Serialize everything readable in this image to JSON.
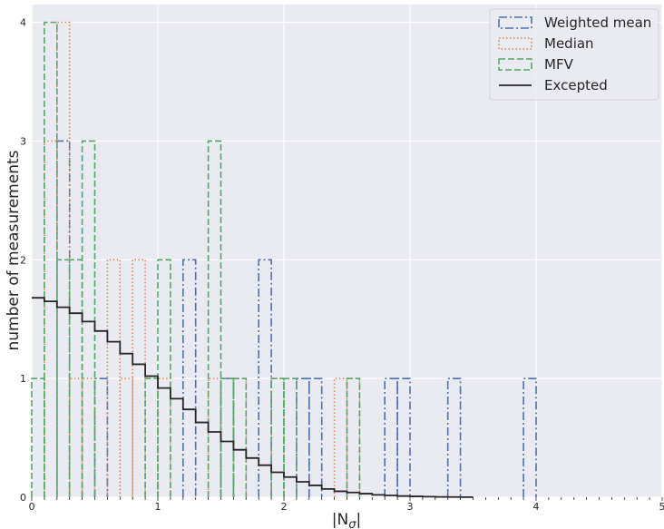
{
  "chart_data": {
    "type": "histogram",
    "xlabel_base": "|N",
    "xlabel_sub": "σ",
    "xlabel_end": "|",
    "ylabel": "number of measurements",
    "xlim": [
      0,
      5
    ],
    "ylim": [
      0,
      4.15
    ],
    "xticks": [
      "0",
      "1",
      "2",
      "3",
      "4",
      "5"
    ],
    "yticks": [
      "0",
      "1",
      "2",
      "3",
      "4"
    ],
    "grid": true,
    "legend_position": "top-right",
    "bin_width": 0.1,
    "series": [
      {
        "name": "Weighted mean",
        "style": "dashdot",
        "color": "#4c72b0",
        "bins": [
          [
            0.2,
            3
          ],
          [
            0.5,
            1
          ],
          [
            1.2,
            2
          ],
          [
            1.5,
            1
          ],
          [
            1.8,
            2
          ],
          [
            2.1,
            1
          ],
          [
            2.2,
            1
          ],
          [
            2.8,
            1
          ],
          [
            2.9,
            1
          ],
          [
            3.3,
            1
          ],
          [
            3.9,
            1
          ]
        ]
      },
      {
        "name": "Median",
        "style": "dotted",
        "color": "#dd8452",
        "bins": [
          [
            0.1,
            3
          ],
          [
            0.2,
            4
          ],
          [
            0.3,
            1
          ],
          [
            0.4,
            1
          ],
          [
            0.6,
            2
          ],
          [
            0.7,
            1
          ],
          [
            0.8,
            2
          ],
          [
            1.0,
            1
          ],
          [
            1.4,
            1
          ],
          [
            1.6,
            1
          ],
          [
            1.9,
            1
          ],
          [
            2.4,
            1
          ],
          [
            2.5,
            1
          ]
        ]
      },
      {
        "name": "MFV",
        "style": "dashed",
        "color": "#55a868",
        "bins": [
          [
            0.0,
            1
          ],
          [
            0.1,
            4
          ],
          [
            0.2,
            2
          ],
          [
            0.3,
            2
          ],
          [
            0.4,
            3
          ],
          [
            0.9,
            1
          ],
          [
            1.0,
            2
          ],
          [
            1.4,
            3
          ],
          [
            1.5,
            1
          ],
          [
            1.6,
            1
          ],
          [
            1.9,
            1
          ],
          [
            2.0,
            1
          ],
          [
            2.5,
            1
          ]
        ]
      },
      {
        "name": "Excepted",
        "style": "solid",
        "color": "#262626",
        "step_x": [
          0.0,
          0.1,
          0.2,
          0.3,
          0.4,
          0.5,
          0.6,
          0.7,
          0.8,
          0.9,
          1.0,
          1.1,
          1.2,
          1.3,
          1.4,
          1.5,
          1.6,
          1.7,
          1.8,
          1.9,
          2.0,
          2.1,
          2.2,
          2.3,
          2.4,
          2.5,
          2.6,
          2.7,
          2.8,
          2.9,
          3.0,
          3.1,
          3.2,
          3.3,
          3.4
        ],
        "step_y": [
          1.68,
          1.65,
          1.6,
          1.55,
          1.48,
          1.4,
          1.31,
          1.21,
          1.12,
          1.02,
          0.92,
          0.83,
          0.74,
          0.63,
          0.55,
          0.47,
          0.4,
          0.33,
          0.27,
          0.21,
          0.17,
          0.13,
          0.1,
          0.07,
          0.05,
          0.04,
          0.03,
          0.02,
          0.015,
          0.01,
          0.007,
          0.005,
          0.003,
          0.002,
          0.001
        ]
      }
    ]
  }
}
